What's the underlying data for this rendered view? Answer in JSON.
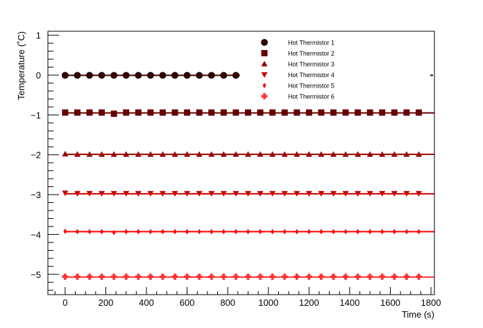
{
  "chart_data": {
    "type": "scatter",
    "title": "",
    "xlabel": "Time (s)",
    "ylabel": "Temperature (˚C)",
    "xlim": [
      -85,
      1817
    ],
    "ylim": [
      -5.51,
      1.1
    ],
    "xticks": [
      0,
      200,
      400,
      600,
      800,
      1000,
      1200,
      1400,
      1600,
      1800
    ],
    "xtick_labels": [
      "0",
      "200",
      "400",
      "600",
      "800",
      "1000",
      "1200",
      "1400",
      "1600",
      "1800"
    ],
    "yticks": [
      1,
      0,
      -1,
      -2,
      -3,
      -4,
      -5
    ],
    "ytick_labels": [
      "1",
      "0",
      "−1",
      "−2",
      "−3",
      "−4",
      "−5"
    ],
    "grid": false,
    "legend_placement": "top-right",
    "series": [
      {
        "name": "Hot Thermistor 1",
        "color": "#3a0000",
        "marker": "circle",
        "x_start": 0,
        "x_step": 60,
        "count": 15,
        "value": -0.005,
        "fit_value": -0.005,
        "fit_end": 860,
        "values": [
          -0.005,
          -0.005,
          -0.005,
          -0.005,
          -0.005,
          -0.005,
          -0.005,
          -0.005,
          -0.005,
          -0.005,
          -0.005,
          -0.005,
          -0.005,
          -0.005,
          -0.005
        ]
      },
      {
        "name": "Hot Thermistor 2",
        "color": "#660000",
        "marker": "square",
        "x_start": 0,
        "x_step": 60,
        "count": 30,
        "fit_value": -0.95,
        "fit_end": 1817,
        "values": [
          -0.94,
          -0.94,
          -0.94,
          -0.94,
          -0.97,
          -0.94,
          -0.94,
          -0.94,
          -0.94,
          -0.94,
          -0.94,
          -0.94,
          -0.94,
          -0.94,
          -0.94,
          -0.94,
          -0.94,
          -0.94,
          -0.94,
          -0.94,
          -0.94,
          -0.94,
          -0.94,
          -0.94,
          -0.94,
          -0.94,
          -0.94,
          -0.94,
          -0.94,
          -0.94
        ]
      },
      {
        "name": "Hot Thermistor 3",
        "color": "#990000",
        "marker": "triangle-up",
        "x_start": 0,
        "x_step": 60,
        "count": 30,
        "fit_value": -1.99,
        "fit_end": 1817,
        "values": [
          -1.98,
          -1.99,
          -1.99,
          -1.99,
          -1.99,
          -1.99,
          -1.99,
          -1.99,
          -1.99,
          -1.99,
          -1.99,
          -1.99,
          -1.99,
          -1.99,
          -1.99,
          -1.99,
          -1.99,
          -1.99,
          -1.99,
          -1.99,
          -1.99,
          -1.99,
          -1.99,
          -1.99,
          -1.99,
          -1.99,
          -1.99,
          -1.99,
          -1.99,
          -1.99
        ]
      },
      {
        "name": "Hot Thermistor 4",
        "color": "#cc0000",
        "marker": "triangle-down",
        "x_start": 0,
        "x_step": 60,
        "count": 30,
        "fit_value": -2.98,
        "fit_end": 1817,
        "values": [
          -2.96,
          -2.97,
          -2.97,
          -2.97,
          -2.97,
          -2.97,
          -2.97,
          -2.97,
          -2.97,
          -2.97,
          -2.97,
          -2.97,
          -2.97,
          -2.97,
          -2.97,
          -2.97,
          -2.97,
          -2.97,
          -2.97,
          -2.97,
          -2.97,
          -2.97,
          -2.97,
          -2.97,
          -2.97,
          -2.97,
          -2.97,
          -2.97,
          -2.97,
          -2.97
        ]
      },
      {
        "name": "Hot Thermistor 5",
        "color": "#ff0000",
        "marker": "diamond-small",
        "x_start": 0,
        "x_step": 60,
        "count": 30,
        "fit_value": -3.93,
        "fit_end": 1817,
        "values": [
          -3.92,
          -3.93,
          -3.93,
          -3.93,
          -3.95,
          -3.93,
          -3.93,
          -3.93,
          -3.93,
          -3.93,
          -3.93,
          -3.93,
          -3.93,
          -3.93,
          -3.93,
          -3.93,
          -3.93,
          -3.93,
          -3.93,
          -3.93,
          -3.93,
          -3.93,
          -3.93,
          -3.93,
          -3.93,
          -3.93,
          -3.93,
          -3.93,
          -3.93,
          -3.93
        ]
      },
      {
        "name": "Hot Thermistor 6",
        "color": "#ff3333",
        "marker": "cross",
        "x_start": 0,
        "x_step": 60,
        "count": 30,
        "fit_value": -5.07,
        "fit_end": 1817,
        "values": [
          -5.06,
          -5.06,
          -5.06,
          -5.06,
          -5.06,
          -5.06,
          -5.06,
          -5.06,
          -5.06,
          -5.06,
          -5.06,
          -5.06,
          -5.06,
          -5.06,
          -5.06,
          -5.06,
          -5.06,
          -5.06,
          -5.06,
          -5.06,
          -5.06,
          -5.06,
          -5.06,
          -5.06,
          -5.06,
          -5.06,
          -5.06,
          -5.06,
          -5.06,
          -5.06
        ]
      }
    ]
  }
}
